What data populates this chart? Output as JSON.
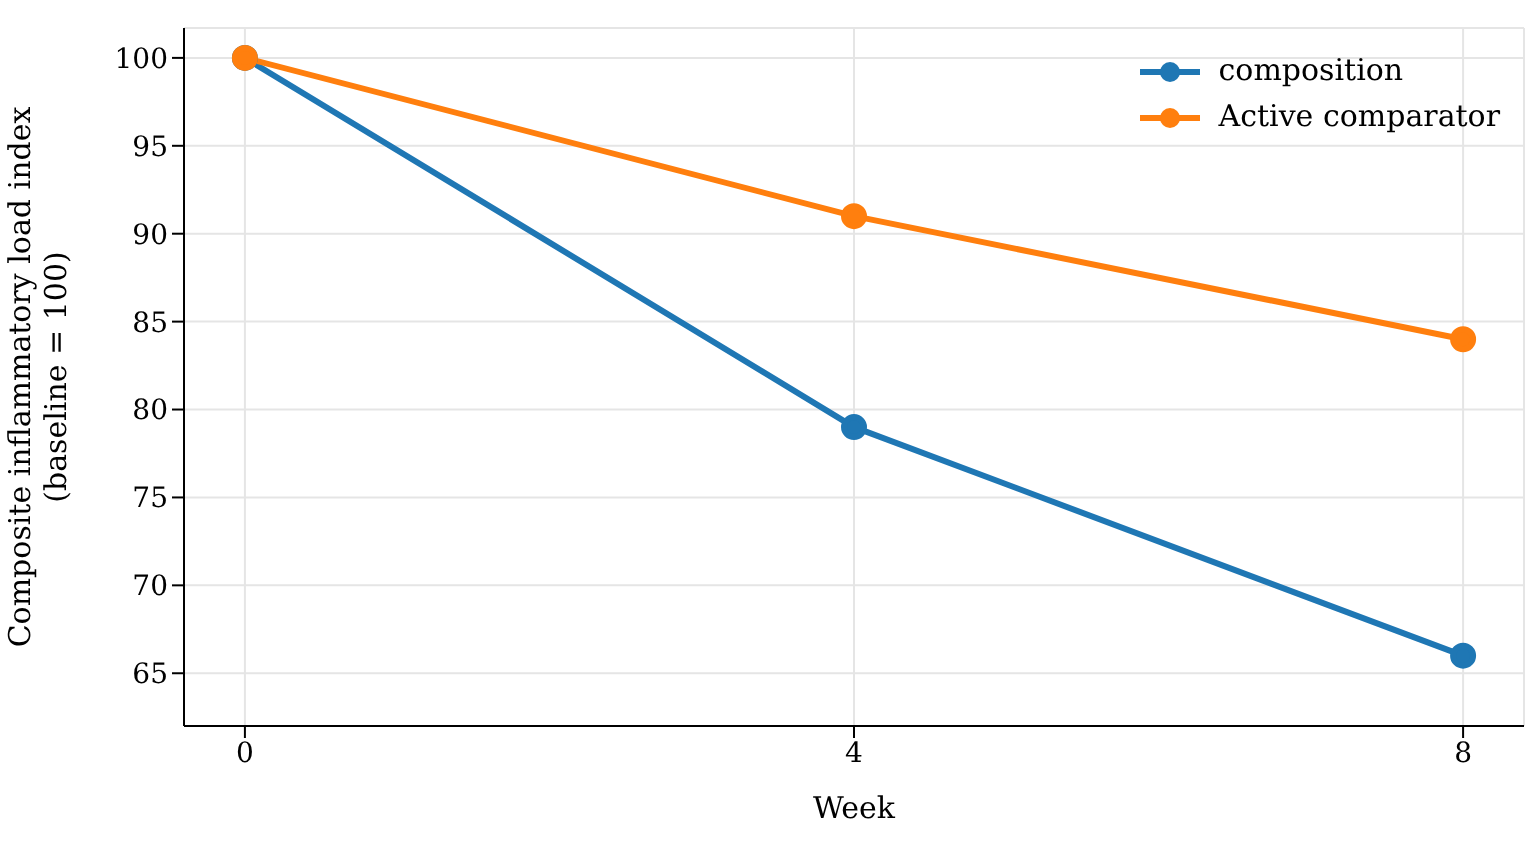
{
  "chart_data": {
    "type": "line",
    "xlabel": "Week",
    "ylabel": "Composite inflammatory load index\n(baseline = 100)",
    "x": [
      0,
      4,
      8
    ],
    "series": [
      {
        "name": "composition",
        "color": "#1f77b4",
        "values": [
          100,
          79,
          66
        ]
      },
      {
        "name": "Active comparator",
        "color": "#ff7f0e",
        "values": [
          100,
          91,
          84
        ]
      }
    ],
    "xlim": [
      -0.4,
      8.4
    ],
    "xticks": [
      0,
      4,
      8
    ],
    "ylim": [
      62,
      101.7
    ],
    "yticks": [
      65,
      70,
      75,
      80,
      85,
      90,
      95,
      100
    ],
    "grid": true,
    "legend": "top right",
    "marker": "circle",
    "line_style": "solid"
  }
}
